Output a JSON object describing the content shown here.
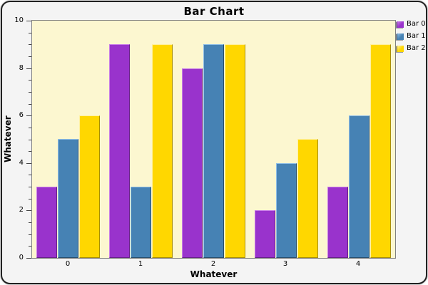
{
  "colors": {
    "frame_background": "#f4f4f4",
    "frame_border": "#222222",
    "plot_background": "#FCF7D0",
    "plot_border": "#808080",
    "tick": "#444444",
    "text": "#000000"
  },
  "chart_data": {
    "type": "bar",
    "title": "Bar Chart",
    "xlabel": "Whatever",
    "ylabel": "Whatever",
    "categories": [
      "0",
      "1",
      "2",
      "3",
      "4"
    ],
    "series": [
      {
        "name": "Bar 0",
        "color": "#9933CC",
        "highlight": "#C97FE8",
        "shade": "#662288",
        "values": [
          3,
          9,
          8,
          2,
          3
        ]
      },
      {
        "name": "Bar 1",
        "color": "#4682B4",
        "highlight": "#8FBEE8",
        "shade": "#294F6E",
        "values": [
          5,
          3,
          9,
          4,
          6
        ]
      },
      {
        "name": "Bar 2",
        "color": "#FFD700",
        "highlight": "#FFF1A0",
        "shade": "#A88E00",
        "values": [
          6,
          9,
          9,
          5,
          9
        ]
      }
    ],
    "ylim": [
      0,
      10
    ],
    "yticks": [
      0,
      2,
      4,
      6,
      8,
      10
    ],
    "minor_tick_step": 0.5,
    "grid": false,
    "legend_position": "right"
  }
}
